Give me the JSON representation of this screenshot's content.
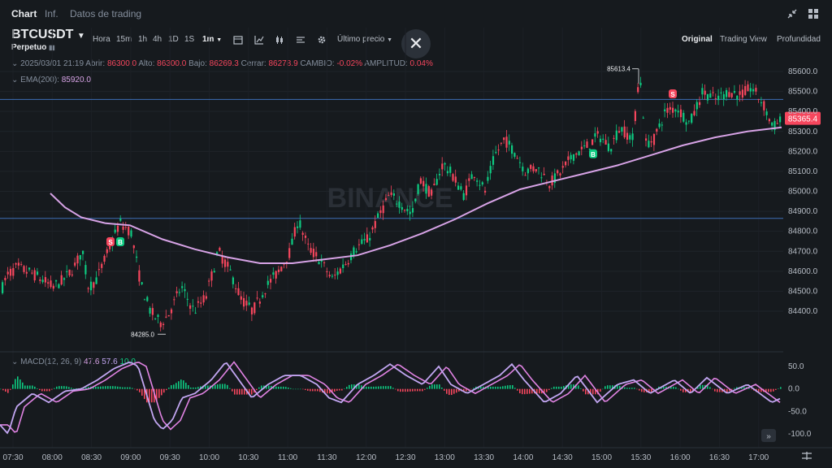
{
  "tabs": [
    "Chart",
    "Inf.",
    "Datos de trading"
  ],
  "symbol": "BTCUSDT",
  "contract": "Perpetuo",
  "timeframes": [
    "Hora",
    "15m",
    "1h",
    "4h",
    "1D",
    "1S",
    "1m"
  ],
  "active_timeframe": "1m",
  "price_type": "Último precio",
  "views": [
    "Original",
    "Trading View",
    "Profundidad"
  ],
  "active_view": "Original",
  "ohlc": {
    "date": "2025/03/01 21:19",
    "open_label": "Abrir:",
    "open": "86300.0",
    "high_label": "Alto:",
    "high": "86300.0",
    "low_label": "Bajo:",
    "low": "86269.3",
    "close_label": "Cerrar:",
    "close": "86278.9",
    "change_label": "CAMBIO:",
    "change": "-0.02%",
    "amp_label": "AMPLITUD:",
    "amp": "0.04%"
  },
  "ema": {
    "label": "EMA(200):",
    "value": "85920.0"
  },
  "macd": {
    "label": "MACD(12, 26, 9)",
    "v1": "47.6",
    "v2": "57.6",
    "v3": "10.0"
  },
  "watermark": "BINANCE",
  "colors": {
    "up": "#0ECB81",
    "down": "#F6465D",
    "ema": "#D7A3E6",
    "macd": "#C2A6F2",
    "signal": "#E083E3",
    "bg": "#161A1E"
  },
  "chart_data": {
    "type": "candlestick",
    "symbol": "BTCUSDT",
    "interval": "1m",
    "x_ticks": [
      "07:30",
      "08:00",
      "08:30",
      "09:00",
      "09:30",
      "10:00",
      "10:30",
      "11:00",
      "11:30",
      "12:00",
      "12:30",
      "13:00",
      "13:30",
      "14:00",
      "14:30",
      "15:00",
      "15:30",
      "16:00",
      "16:30",
      "17:00"
    ],
    "y_ticks": [
      85600,
      85500,
      85400,
      85300,
      85200,
      85100,
      85000,
      84900,
      84800,
      84700,
      84600,
      84500,
      84400
    ],
    "ylim": [
      84300,
      85680
    ],
    "price_path": [
      [
        0,
        84500
      ],
      [
        8,
        84580
      ],
      [
        20,
        84620
      ],
      [
        38,
        84590
      ],
      [
        50,
        84560
      ],
      [
        64,
        84520
      ],
      [
        78,
        84560
      ],
      [
        90,
        84620
      ],
      [
        100,
        84700
      ],
      [
        108,
        84520
      ],
      [
        118,
        84560
      ],
      [
        132,
        84700
      ],
      [
        146,
        84840
      ],
      [
        160,
        84800
      ],
      [
        172,
        84540
      ],
      [
        184,
        84400
      ],
      [
        196,
        84340
      ],
      [
        206,
        84380
      ],
      [
        222,
        84520
      ],
      [
        238,
        84400
      ],
      [
        252,
        84470
      ],
      [
        268,
        84700
      ],
      [
        282,
        84600
      ],
      [
        296,
        84460
      ],
      [
        310,
        84400
      ],
      [
        326,
        84520
      ],
      [
        342,
        84600
      ],
      [
        356,
        84700
      ],
      [
        366,
        84860
      ],
      [
        378,
        84720
      ],
      [
        392,
        84660
      ],
      [
        408,
        84560
      ],
      [
        424,
        84640
      ],
      [
        438,
        84720
      ],
      [
        452,
        84760
      ],
      [
        466,
        84880
      ],
      [
        478,
        84980
      ],
      [
        492,
        84940
      ],
      [
        506,
        84880
      ],
      [
        516,
        85060
      ],
      [
        530,
        84980
      ],
      [
        544,
        85140
      ],
      [
        556,
        85080
      ],
      [
        570,
        84980
      ],
      [
        582,
        85100
      ],
      [
        596,
        85000
      ],
      [
        608,
        85180
      ],
      [
        620,
        85260
      ],
      [
        632,
        85200
      ],
      [
        646,
        85100
      ],
      [
        660,
        85120
      ],
      [
        676,
        85040
      ],
      [
        690,
        85100
      ],
      [
        704,
        85180
      ],
      [
        720,
        85220
      ],
      [
        736,
        85280
      ],
      [
        750,
        85220
      ],
      [
        762,
        85320
      ],
      [
        778,
        85260
      ],
      [
        786,
        85600
      ],
      [
        794,
        85240
      ],
      [
        804,
        85260
      ],
      [
        818,
        85400
      ],
      [
        832,
        85420
      ],
      [
        848,
        85340
      ],
      [
        864,
        85500
      ],
      [
        880,
        85460
      ],
      [
        896,
        85500
      ],
      [
        910,
        85480
      ],
      [
        924,
        85520
      ],
      [
        938,
        85440
      ],
      [
        950,
        85320
      ],
      [
        962,
        85360
      ]
    ],
    "ema": [
      [
        62,
        84990
      ],
      [
        80,
        84920
      ],
      [
        100,
        84870
      ],
      [
        130,
        84840
      ],
      [
        160,
        84830
      ],
      [
        200,
        84760
      ],
      [
        240,
        84710
      ],
      [
        280,
        84670
      ],
      [
        320,
        84640
      ],
      [
        360,
        84640
      ],
      [
        400,
        84660
      ],
      [
        440,
        84680
      ],
      [
        480,
        84730
      ],
      [
        520,
        84790
      ],
      [
        560,
        84860
      ],
      [
        600,
        84940
      ],
      [
        640,
        85010
      ],
      [
        680,
        85050
      ],
      [
        720,
        85090
      ],
      [
        760,
        85130
      ],
      [
        800,
        85180
      ],
      [
        840,
        85230
      ],
      [
        880,
        85270
      ],
      [
        920,
        85300
      ],
      [
        962,
        85320
      ]
    ],
    "hlines": [
      85460,
      84865
    ],
    "annotations": [
      {
        "text": "85613.4",
        "price": 85613.4
      },
      {
        "text": "84285.0",
        "price": 84285.0
      },
      {
        "text": "85365.4",
        "price": 85365.4
      }
    ],
    "markers": [
      {
        "type": "S",
        "x": 136,
        "price": 84750
      },
      {
        "type": "B",
        "x": 148,
        "price": 84750
      },
      {
        "type": "B",
        "x": 730,
        "price": 85190
      },
      {
        "type": "S",
        "x": 828,
        "price": 85490
      }
    ],
    "macd": {
      "y_ticks": [
        50,
        0,
        -50,
        -100
      ],
      "ylim": [
        -125,
        70
      ],
      "wave": [
        [
          0,
          -80
        ],
        [
          10,
          -100
        ],
        [
          20,
          -40
        ],
        [
          40,
          -10
        ],
        [
          60,
          -30
        ],
        [
          80,
          -5
        ],
        [
          100,
          0
        ],
        [
          120,
          20
        ],
        [
          140,
          45
        ],
        [
          160,
          60
        ],
        [
          170,
          50
        ],
        [
          180,
          -10
        ],
        [
          190,
          -70
        ],
        [
          200,
          -90
        ],
        [
          212,
          -70
        ],
        [
          224,
          -20
        ],
        [
          240,
          -10
        ],
        [
          260,
          20
        ],
        [
          278,
          60
        ],
        [
          290,
          30
        ],
        [
          310,
          -20
        ],
        [
          330,
          10
        ],
        [
          350,
          30
        ],
        [
          370,
          30
        ],
        [
          390,
          10
        ],
        [
          405,
          -20
        ],
        [
          420,
          -30
        ],
        [
          440,
          10
        ],
        [
          460,
          30
        ],
        [
          480,
          55
        ],
        [
          500,
          30
        ],
        [
          520,
          10
        ],
        [
          540,
          50
        ],
        [
          555,
          10
        ],
        [
          575,
          -10
        ],
        [
          595,
          10
        ],
        [
          615,
          30
        ],
        [
          630,
          55
        ],
        [
          645,
          20
        ],
        [
          670,
          -30
        ],
        [
          690,
          -10
        ],
        [
          710,
          30
        ],
        [
          735,
          -30
        ],
        [
          760,
          10
        ],
        [
          780,
          20
        ],
        [
          800,
          -10
        ],
        [
          830,
          20
        ],
        [
          850,
          -10
        ],
        [
          870,
          25
        ],
        [
          895,
          -10
        ],
        [
          920,
          10
        ],
        [
          950,
          -30
        ],
        [
          962,
          -20
        ]
      ]
    }
  }
}
